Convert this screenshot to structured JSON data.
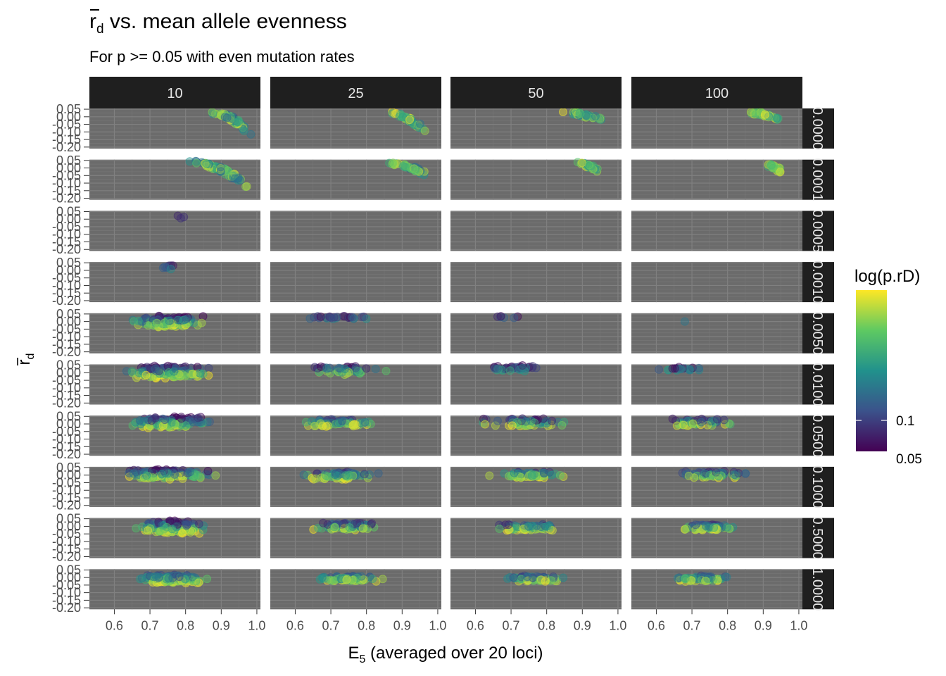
{
  "chart_data": {
    "type": "scatter",
    "title_main": "r",
    "title_sub_d": "d",
    "title_rest": " vs. mean allele evenness",
    "subtitle": "For p >= 0.05 with even mutation rates",
    "xlabel_main": "E",
    "xlabel_sub": "5",
    "xlabel_rest": " (averaged over 20 loci)",
    "ylabel_main": "r",
    "ylabel_sub": "d",
    "legend_title": "log(p.rD)",
    "legend_ticks": [
      "0.05",
      "0.1"
    ],
    "legend_position": "right",
    "legend_colors": [
      "#440154",
      "#3b528b",
      "#21918c",
      "#5ec962",
      "#fde725"
    ],
    "col_facets": [
      "10",
      "25",
      "50",
      "100"
    ],
    "row_facets": [
      "0.0000",
      "0.0001",
      "0.0005",
      "0.0010",
      "0.0050",
      "0.0100",
      "0.0500",
      "0.1000",
      "0.5000",
      "1.0000"
    ],
    "x_ticks": [
      "0.6",
      "0.7",
      "0.8",
      "0.9",
      "1.0"
    ],
    "y_ticks": [
      "0.05",
      "0.00",
      "-0.05",
      "-0.10",
      "-0.15",
      "-0.20"
    ],
    "xlim": [
      0.53,
      1.01
    ],
    "ylim": [
      -0.21,
      0.055
    ],
    "clusters": [
      {
        "row": 0,
        "col": 0,
        "n": 80,
        "x": [
          0.86,
          0.99
        ],
        "y": [
          -0.17,
          0.03
        ],
        "c": [
          0.3,
          1.0
        ],
        "trend": -0.6
      },
      {
        "row": 0,
        "col": 1,
        "n": 45,
        "x": [
          0.85,
          0.98
        ],
        "y": [
          -0.18,
          0.03
        ],
        "c": [
          0.4,
          1.0
        ],
        "trend": -0.5
      },
      {
        "row": 0,
        "col": 2,
        "n": 40,
        "x": [
          0.83,
          0.97
        ],
        "y": [
          -0.05,
          0.03
        ],
        "c": [
          0.3,
          1.0
        ],
        "trend": -0.3
      },
      {
        "row": 0,
        "col": 3,
        "n": 35,
        "x": [
          0.84,
          0.97
        ],
        "y": [
          -0.05,
          0.03
        ],
        "c": [
          0.5,
          1.0
        ],
        "trend": -0.3
      },
      {
        "row": 1,
        "col": 0,
        "n": 80,
        "x": [
          0.8,
          0.99
        ],
        "y": [
          -0.19,
          0.04
        ],
        "c": [
          0.3,
          1.0
        ],
        "trend": -0.7
      },
      {
        "row": 1,
        "col": 1,
        "n": 50,
        "x": [
          0.85,
          0.99
        ],
        "y": [
          -0.1,
          0.03
        ],
        "c": [
          0.3,
          1.0
        ],
        "trend": -0.5
      },
      {
        "row": 1,
        "col": 2,
        "n": 35,
        "x": [
          0.88,
          0.96
        ],
        "y": [
          -0.07,
          0.03
        ],
        "c": [
          0.4,
          1.0
        ],
        "trend": -0.3
      },
      {
        "row": 1,
        "col": 3,
        "n": 30,
        "x": [
          0.9,
          0.96
        ],
        "y": [
          -0.05,
          0.02
        ],
        "c": [
          0.6,
          1.0
        ],
        "trend": -0.2
      },
      {
        "row": 2,
        "col": 0,
        "n": 3,
        "x": [
          0.75,
          0.81
        ],
        "y": [
          -0.03,
          0.03
        ],
        "c": [
          0.0,
          0.4
        ],
        "trend": 0
      },
      {
        "row": 3,
        "col": 0,
        "n": 8,
        "x": [
          0.67,
          0.81
        ],
        "y": [
          -0.01,
          0.04
        ],
        "c": [
          0.05,
          0.5
        ],
        "trend": 0
      },
      {
        "row": 4,
        "col": 0,
        "n": 150,
        "x": [
          0.62,
          0.87
        ],
        "y": [
          -0.04,
          0.04
        ],
        "c": [
          0.0,
          1.0
        ],
        "trend": 0
      },
      {
        "row": 4,
        "col": 1,
        "n": 25,
        "x": [
          0.6,
          0.85
        ],
        "y": [
          0.0,
          0.04
        ],
        "c": [
          0.0,
          0.5
        ],
        "trend": 0
      },
      {
        "row": 4,
        "col": 2,
        "n": 6,
        "x": [
          0.6,
          0.76
        ],
        "y": [
          0.0,
          0.04
        ],
        "c": [
          0.0,
          0.4
        ],
        "trend": 0
      },
      {
        "row": 4,
        "col": 3,
        "n": 1,
        "x": [
          0.68,
          0.68
        ],
        "y": [
          0.0,
          0.0
        ],
        "c": [
          0.4,
          0.4
        ],
        "trend": 0
      },
      {
        "row": 5,
        "col": 0,
        "n": 150,
        "x": [
          0.61,
          0.89
        ],
        "y": [
          -0.04,
          0.05
        ],
        "c": [
          0.0,
          1.0
        ],
        "trend": 0
      },
      {
        "row": 5,
        "col": 1,
        "n": 50,
        "x": [
          0.62,
          0.87
        ],
        "y": [
          -0.02,
          0.05
        ],
        "c": [
          0.0,
          0.9
        ],
        "trend": 0
      },
      {
        "row": 5,
        "col": 2,
        "n": 40,
        "x": [
          0.6,
          0.8
        ],
        "y": [
          -0.01,
          0.05
        ],
        "c": [
          0.0,
          0.7
        ],
        "trend": 0
      },
      {
        "row": 5,
        "col": 3,
        "n": 20,
        "x": [
          0.58,
          0.76
        ],
        "y": [
          0.0,
          0.04
        ],
        "c": [
          0.0,
          0.6
        ],
        "trend": 0
      },
      {
        "row": 6,
        "col": 0,
        "n": 150,
        "x": [
          0.62,
          0.89
        ],
        "y": [
          -0.03,
          0.05
        ],
        "c": [
          0.0,
          1.0
        ],
        "trend": 0
      },
      {
        "row": 6,
        "col": 1,
        "n": 70,
        "x": [
          0.6,
          0.86
        ],
        "y": [
          -0.02,
          0.04
        ],
        "c": [
          0.1,
          1.0
        ],
        "trend": 0
      },
      {
        "row": 6,
        "col": 2,
        "n": 60,
        "x": [
          0.59,
          0.88
        ],
        "y": [
          -0.02,
          0.04
        ],
        "c": [
          0.0,
          1.0
        ],
        "trend": 0
      },
      {
        "row": 6,
        "col": 3,
        "n": 50,
        "x": [
          0.59,
          0.85
        ],
        "y": [
          -0.02,
          0.04
        ],
        "c": [
          0.0,
          1.0
        ],
        "trend": 0
      },
      {
        "row": 7,
        "col": 0,
        "n": 150,
        "x": [
          0.59,
          0.9
        ],
        "y": [
          -0.03,
          0.04
        ],
        "c": [
          0.0,
          1.0
        ],
        "trend": 0
      },
      {
        "row": 7,
        "col": 1,
        "n": 80,
        "x": [
          0.6,
          0.86
        ],
        "y": [
          -0.03,
          0.03
        ],
        "c": [
          0.1,
          1.0
        ],
        "trend": 0
      },
      {
        "row": 7,
        "col": 2,
        "n": 60,
        "x": [
          0.63,
          0.86
        ],
        "y": [
          -0.02,
          0.03
        ],
        "c": [
          0.1,
          1.0
        ],
        "trend": 0
      },
      {
        "row": 7,
        "col": 3,
        "n": 60,
        "x": [
          0.64,
          0.88
        ],
        "y": [
          -0.02,
          0.03
        ],
        "c": [
          0.1,
          1.0
        ],
        "trend": 0
      },
      {
        "row": 8,
        "col": 0,
        "n": 150,
        "x": [
          0.64,
          0.89
        ],
        "y": [
          -0.05,
          0.04
        ],
        "c": [
          0.0,
          1.0
        ],
        "trend": 0
      },
      {
        "row": 8,
        "col": 1,
        "n": 80,
        "x": [
          0.62,
          0.86
        ],
        "y": [
          -0.03,
          0.03
        ],
        "c": [
          0.1,
          1.0
        ],
        "trend": 0
      },
      {
        "row": 8,
        "col": 2,
        "n": 70,
        "x": [
          0.63,
          0.86
        ],
        "y": [
          -0.03,
          0.02
        ],
        "c": [
          0.1,
          1.0
        ],
        "trend": 0
      },
      {
        "row": 8,
        "col": 3,
        "n": 70,
        "x": [
          0.63,
          0.86
        ],
        "y": [
          -0.03,
          0.02
        ],
        "c": [
          0.1,
          1.0
        ],
        "trend": 0
      },
      {
        "row": 9,
        "col": 0,
        "n": 150,
        "x": [
          0.65,
          0.88
        ],
        "y": [
          -0.04,
          0.03
        ],
        "c": [
          0.2,
          1.0
        ],
        "trend": 0
      },
      {
        "row": 9,
        "col": 1,
        "n": 70,
        "x": [
          0.63,
          0.86
        ],
        "y": [
          -0.03,
          0.02
        ],
        "c": [
          0.2,
          1.0
        ],
        "trend": 0
      },
      {
        "row": 9,
        "col": 2,
        "n": 60,
        "x": [
          0.64,
          0.89
        ],
        "y": [
          -0.03,
          0.02
        ],
        "c": [
          0.2,
          1.0
        ],
        "trend": 0
      },
      {
        "row": 9,
        "col": 3,
        "n": 60,
        "x": [
          0.63,
          0.84
        ],
        "y": [
          -0.03,
          0.02
        ],
        "c": [
          0.2,
          1.0
        ],
        "trend": 0
      }
    ]
  }
}
